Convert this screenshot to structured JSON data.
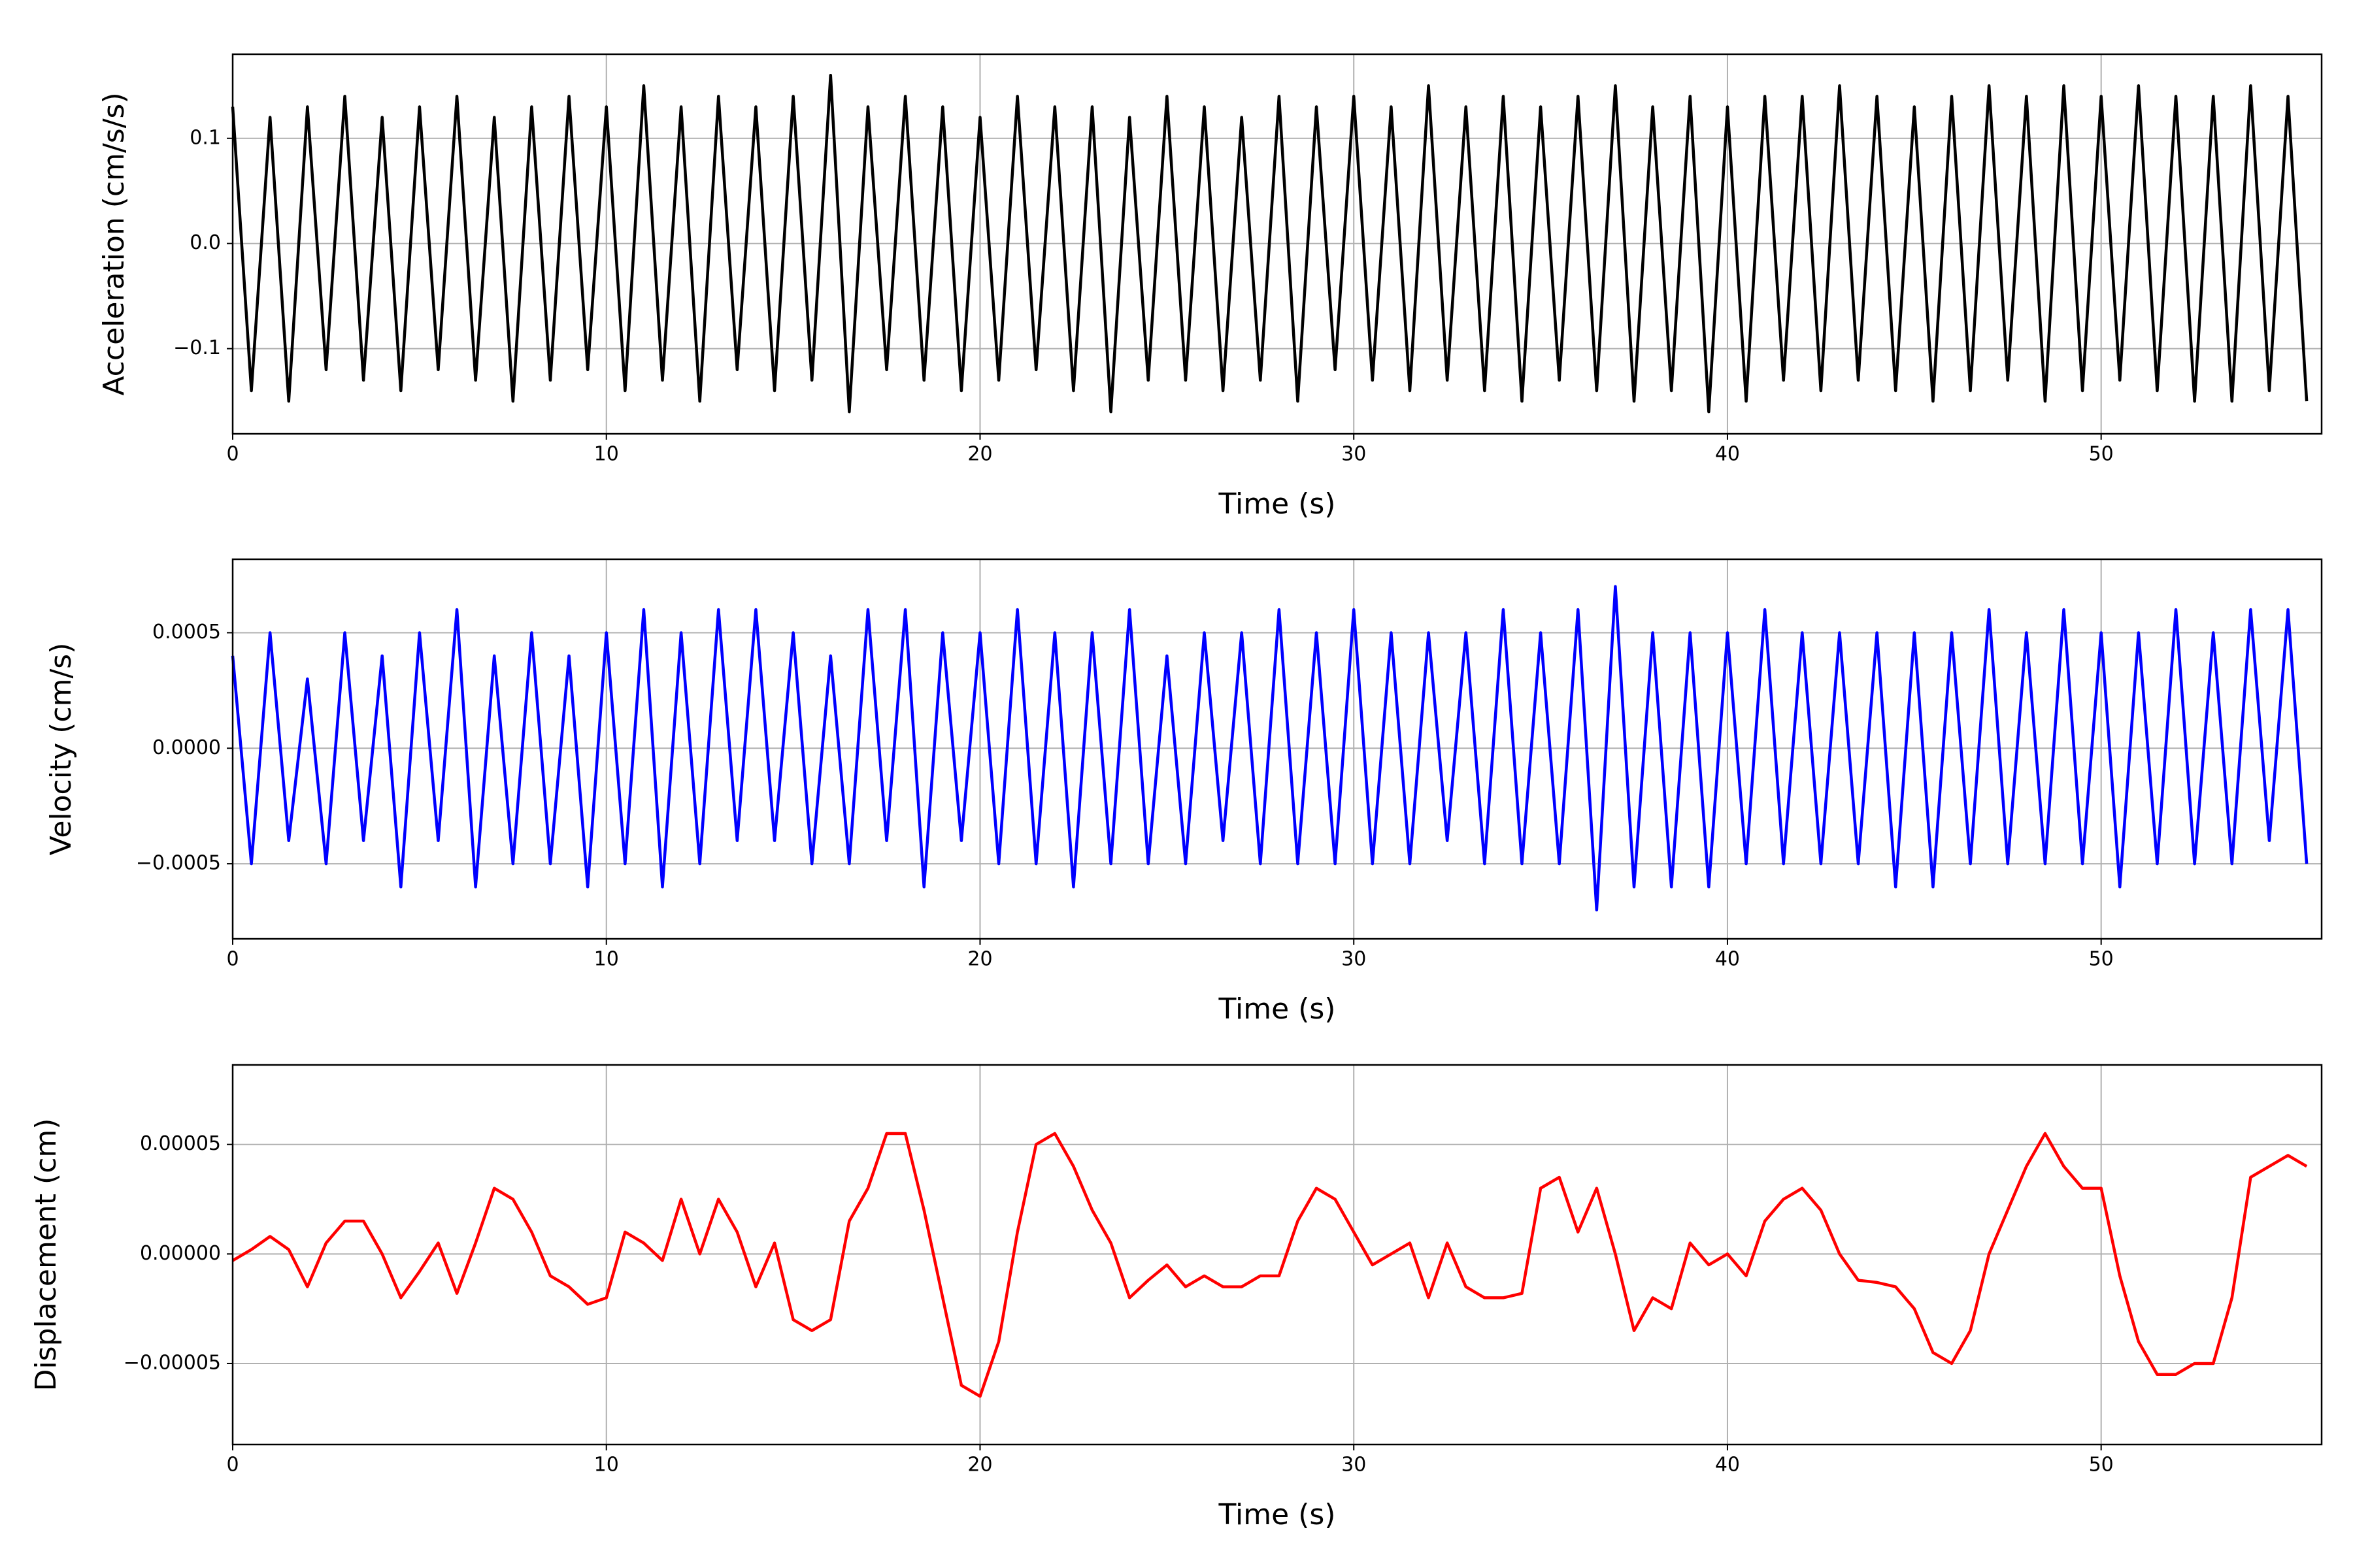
{
  "chart_data": [
    {
      "type": "line",
      "ylabel": "Acceleration (cm/s/s)",
      "xlabel": "Time (s)",
      "grid": true,
      "xlim": [
        0,
        55.9
      ],
      "xticks": [
        0,
        10,
        20,
        30,
        40,
        50
      ],
      "ylim": [
        -0.181,
        0.18
      ],
      "yticks": [
        {
          "value": -0.1,
          "label": "−0.1"
        },
        {
          "value": 0,
          "label": "0.0"
        },
        0.1
      ],
      "x": [
        0,
        0.5,
        1,
        1.5,
        2,
        2.5,
        3,
        3.5,
        4,
        4.5,
        5,
        5.5,
        6,
        6.5,
        7,
        7.5,
        8,
        8.5,
        9,
        9.5,
        10,
        10.5,
        11,
        11.5,
        12,
        12.5,
        13,
        13.5,
        14,
        14.5,
        15,
        15.5,
        16,
        16.5,
        17,
        17.5,
        18,
        18.5,
        19,
        19.5,
        20,
        20.5,
        21,
        21.5,
        22,
        22.5,
        23,
        23.5,
        24,
        24.5,
        25,
        25.5,
        26,
        26.5,
        27,
        27.5,
        28,
        28.5,
        29,
        29.5,
        30,
        30.5,
        31,
        31.5,
        32,
        32.5,
        33,
        33.5,
        34,
        34.5,
        35,
        35.5,
        36,
        36.5,
        37,
        37.5,
        38,
        38.5,
        39,
        39.5,
        40,
        40.5,
        41,
        41.5,
        42,
        42.5,
        43,
        43.5,
        44,
        44.5,
        45,
        45.5,
        46,
        46.5,
        47,
        47.5,
        48,
        48.5,
        49,
        49.5,
        50,
        50.5,
        51,
        51.5,
        52,
        52.5,
        53,
        53.5,
        54,
        54.5,
        55,
        55.5
      ],
      "series": [
        {
          "color": "#000000",
          "values": [
            0.13,
            -0.14,
            0.12,
            -0.15,
            0.13,
            -0.12,
            0.14,
            -0.13,
            0.12,
            -0.14,
            0.13,
            -0.12,
            0.14,
            -0.13,
            0.12,
            -0.15,
            0.13,
            -0.13,
            0.14,
            -0.12,
            0.13,
            -0.14,
            0.15,
            -0.13,
            0.13,
            -0.15,
            0.14,
            -0.12,
            0.13,
            -0.14,
            0.14,
            -0.13,
            0.16,
            -0.16,
            0.13,
            -0.12,
            0.14,
            -0.13,
            0.13,
            -0.14,
            0.12,
            -0.13,
            0.14,
            -0.12,
            0.13,
            -0.14,
            0.13,
            -0.16,
            0.12,
            -0.13,
            0.14,
            -0.13,
            0.13,
            -0.14,
            0.12,
            -0.13,
            0.14,
            -0.15,
            0.13,
            -0.12,
            0.14,
            -0.13,
            0.13,
            -0.14,
            0.15,
            -0.13,
            0.13,
            -0.14,
            0.14,
            -0.15,
            0.13,
            -0.13,
            0.14,
            -0.14,
            0.15,
            -0.15,
            0.13,
            -0.14,
            0.14,
            -0.16,
            0.13,
            -0.15,
            0.14,
            -0.13,
            0.14,
            -0.14,
            0.15,
            -0.13,
            0.14,
            -0.14,
            0.13,
            -0.15,
            0.14,
            -0.14,
            0.15,
            -0.13,
            0.14,
            -0.15,
            0.15,
            -0.14,
            0.14,
            -0.13,
            0.15,
            -0.14,
            0.14,
            -0.15,
            0.14,
            -0.15,
            0.15,
            -0.14,
            0.14,
            -0.15
          ]
        }
      ]
    },
    {
      "type": "line",
      "ylabel": "Velocity (cm/s)",
      "xlabel": "Time (s)",
      "grid": true,
      "xlim": [
        0,
        55.9
      ],
      "xticks": [
        0,
        10,
        20,
        30,
        40,
        50
      ],
      "ylim": [
        -0.000825,
        0.000818
      ],
      "yticks": [
        {
          "value": -0.0005,
          "label": "−0.0005"
        },
        {
          "value": 0,
          "label": "0.0000"
        },
        0.0005
      ],
      "x": [
        0,
        0.5,
        1,
        1.5,
        2,
        2.5,
        3,
        3.5,
        4,
        4.5,
        5,
        5.5,
        6,
        6.5,
        7,
        7.5,
        8,
        8.5,
        9,
        9.5,
        10,
        10.5,
        11,
        11.5,
        12,
        12.5,
        13,
        13.5,
        14,
        14.5,
        15,
        15.5,
        16,
        16.5,
        17,
        17.5,
        18,
        18.5,
        19,
        19.5,
        20,
        20.5,
        21,
        21.5,
        22,
        22.5,
        23,
        23.5,
        24,
        24.5,
        25,
        25.5,
        26,
        26.5,
        27,
        27.5,
        28,
        28.5,
        29,
        29.5,
        30,
        30.5,
        31,
        31.5,
        32,
        32.5,
        33,
        33.5,
        34,
        34.5,
        35,
        35.5,
        36,
        36.5,
        37,
        37.5,
        38,
        38.5,
        39,
        39.5,
        40,
        40.5,
        41,
        41.5,
        42,
        42.5,
        43,
        43.5,
        44,
        44.5,
        45,
        45.5,
        46,
        46.5,
        47,
        47.5,
        48,
        48.5,
        49,
        49.5,
        50,
        50.5,
        51,
        51.5,
        52,
        52.5,
        53,
        53.5,
        54,
        54.5,
        55,
        55.5
      ],
      "series": [
        {
          "color": "#0000ff",
          "values": [
            0.0004,
            -0.0005,
            0.0005,
            -0.0004,
            0.0003,
            -0.0005,
            0.0005,
            -0.0004,
            0.0004,
            -0.0006,
            0.0005,
            -0.0004,
            0.0006,
            -0.0006,
            0.0004,
            -0.0005,
            0.0005,
            -0.0005,
            0.0004,
            -0.0006,
            0.0005,
            -0.0005,
            0.0006,
            -0.0006,
            0.0005,
            -0.0005,
            0.0006,
            -0.0004,
            0.0006,
            -0.0004,
            0.0005,
            -0.0005,
            0.0004,
            -0.0005,
            0.0006,
            -0.0004,
            0.0006,
            -0.0006,
            0.0005,
            -0.0004,
            0.0005,
            -0.0005,
            0.0006,
            -0.0005,
            0.0005,
            -0.0006,
            0.0005,
            -0.0005,
            0.0006,
            -0.0005,
            0.0004,
            -0.0005,
            0.0005,
            -0.0004,
            0.0005,
            -0.0005,
            0.0006,
            -0.0005,
            0.0005,
            -0.0005,
            0.0006,
            -0.0005,
            0.0005,
            -0.0005,
            0.0005,
            -0.0004,
            0.0005,
            -0.0005,
            0.0006,
            -0.0005,
            0.0005,
            -0.0005,
            0.0006,
            -0.0007,
            0.0007,
            -0.0006,
            0.0005,
            -0.0006,
            0.0005,
            -0.0006,
            0.0005,
            -0.0005,
            0.0006,
            -0.0005,
            0.0005,
            -0.0005,
            0.0005,
            -0.0005,
            0.0005,
            -0.0006,
            0.0005,
            -0.0006,
            0.0005,
            -0.0005,
            0.0006,
            -0.0005,
            0.0005,
            -0.0005,
            0.0006,
            -0.0005,
            0.0005,
            -0.0006,
            0.0005,
            -0.0005,
            0.0006,
            -0.0005,
            0.0005,
            -0.0005,
            0.0006,
            -0.0004,
            0.0006,
            -0.0005
          ]
        }
      ]
    },
    {
      "type": "line",
      "ylabel": "Displacement (cm)",
      "xlabel": "Time (s)",
      "grid": true,
      "xlim": [
        0,
        55.9
      ],
      "xticks": [
        0,
        10,
        20,
        30,
        40,
        50
      ],
      "ylim": [
        -8.7e-05,
        8.63e-05
      ],
      "yticks": [
        {
          "value": -5e-05,
          "label": "−0.00005"
        },
        {
          "value": 0,
          "label": "0.00000"
        },
        {
          "value": 5e-05,
          "label": "0.00005"
        }
      ],
      "x": [
        0,
        0.5,
        1,
        1.5,
        2,
        2.5,
        3,
        3.5,
        4,
        4.5,
        5,
        5.5,
        6,
        6.5,
        7,
        7.5,
        8,
        8.5,
        9,
        9.5,
        10,
        10.5,
        11,
        11.5,
        12,
        12.5,
        13,
        13.5,
        14,
        14.5,
        15,
        15.5,
        16,
        16.5,
        17,
        17.5,
        18,
        18.5,
        19,
        19.5,
        20,
        20.5,
        21,
        21.5,
        22,
        22.5,
        23,
        23.5,
        24,
        24.5,
        25,
        25.5,
        26,
        26.5,
        27,
        27.5,
        28,
        28.5,
        29,
        29.5,
        30,
        30.5,
        31,
        31.5,
        32,
        32.5,
        33,
        33.5,
        34,
        34.5,
        35,
        35.5,
        36,
        36.5,
        37,
        37.5,
        38,
        38.5,
        39,
        39.5,
        40,
        40.5,
        41,
        41.5,
        42,
        42.5,
        43,
        43.5,
        44,
        44.5,
        45,
        45.5,
        46,
        46.5,
        47,
        47.5,
        48,
        48.5,
        49,
        49.5,
        50,
        50.5,
        51,
        51.5,
        52,
        52.5,
        53,
        53.5,
        54,
        54.5,
        55,
        55.5
      ],
      "series": [
        {
          "color": "#ff0000",
          "values": [
            -3e-06,
            2e-06,
            8e-06,
            2e-06,
            -1.5e-05,
            5e-06,
            1.5e-05,
            1.5e-05,
            0,
            -2e-05,
            -8e-06,
            5e-06,
            -1.8e-05,
            5e-06,
            3e-05,
            2.5e-05,
            1e-05,
            -1e-05,
            -1.5e-05,
            -2.3e-05,
            -2e-05,
            1e-05,
            5e-06,
            -3e-06,
            2.5e-05,
            0,
            2.5e-05,
            1e-05,
            -1.5e-05,
            5e-06,
            -3e-05,
            -3.5e-05,
            -3e-05,
            1.5e-05,
            3e-05,
            5.5e-05,
            5.5e-05,
            2e-05,
            -2e-05,
            -6e-05,
            -6.5e-05,
            -4e-05,
            1e-05,
            5e-05,
            5.5e-05,
            4e-05,
            2e-05,
            5e-06,
            -2e-05,
            -1.2e-05,
            -5e-06,
            -1.5e-05,
            -1e-05,
            -1.5e-05,
            -1.5e-05,
            -1e-05,
            -1e-05,
            1.5e-05,
            3e-05,
            2.5e-05,
            1e-05,
            -5e-06,
            0,
            5e-06,
            -2e-05,
            5e-06,
            -1.5e-05,
            -2e-05,
            -2e-05,
            -1.8e-05,
            3e-05,
            3.5e-05,
            1e-05,
            3e-05,
            0,
            -3.5e-05,
            -2e-05,
            -2.5e-05,
            5e-06,
            -5e-06,
            0,
            -1e-05,
            1.5e-05,
            2.5e-05,
            3e-05,
            2e-05,
            0,
            -1.2e-05,
            -1.3e-05,
            -1.5e-05,
            -2.5e-05,
            -4.5e-05,
            -5e-05,
            -3.5e-05,
            0,
            2e-05,
            4e-05,
            5.5e-05,
            4e-05,
            3e-05,
            3e-05,
            -1e-05,
            -4e-05,
            -5.5e-05,
            -5.5e-05,
            -5e-05,
            -5e-05,
            -2e-05,
            3.5e-05,
            4e-05,
            4.5e-05,
            4e-05
          ]
        }
      ]
    }
  ]
}
